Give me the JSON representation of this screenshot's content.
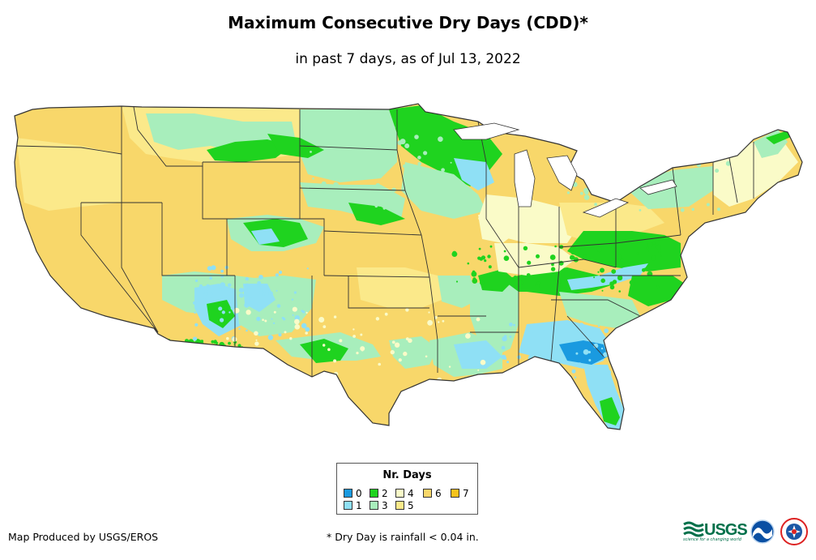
{
  "title": "Maximum Consecutive Dry Days (CDD)*",
  "subtitle": "in past 7 days, as of Jul 13, 2022",
  "legend": {
    "title": "Nr. Days",
    "items": [
      {
        "label": "0",
        "color": "#1a9ae0"
      },
      {
        "label": "1",
        "color": "#8fe0f5"
      },
      {
        "label": "2",
        "color": "#1fd31f"
      },
      {
        "label": "3",
        "color": "#a8eebc"
      },
      {
        "label": "4",
        "color": "#fafbc8"
      },
      {
        "label": "5",
        "color": "#fbe98a"
      },
      {
        "label": "6",
        "color": "#f8d76a"
      },
      {
        "label": "7",
        "color": "#f6c21c"
      }
    ]
  },
  "footer": {
    "producer": "Map Produced by USGS/EROS",
    "note": "* Dry Day is rainfall < 0.04 in."
  },
  "logos": {
    "usgs": "USGS",
    "usgs_tagline": "science for a changing world",
    "noaa": "NOAA",
    "nws": "National Weather Service"
  },
  "map": {
    "base_color": "#f8d76a",
    "border_color": "#333333"
  }
}
